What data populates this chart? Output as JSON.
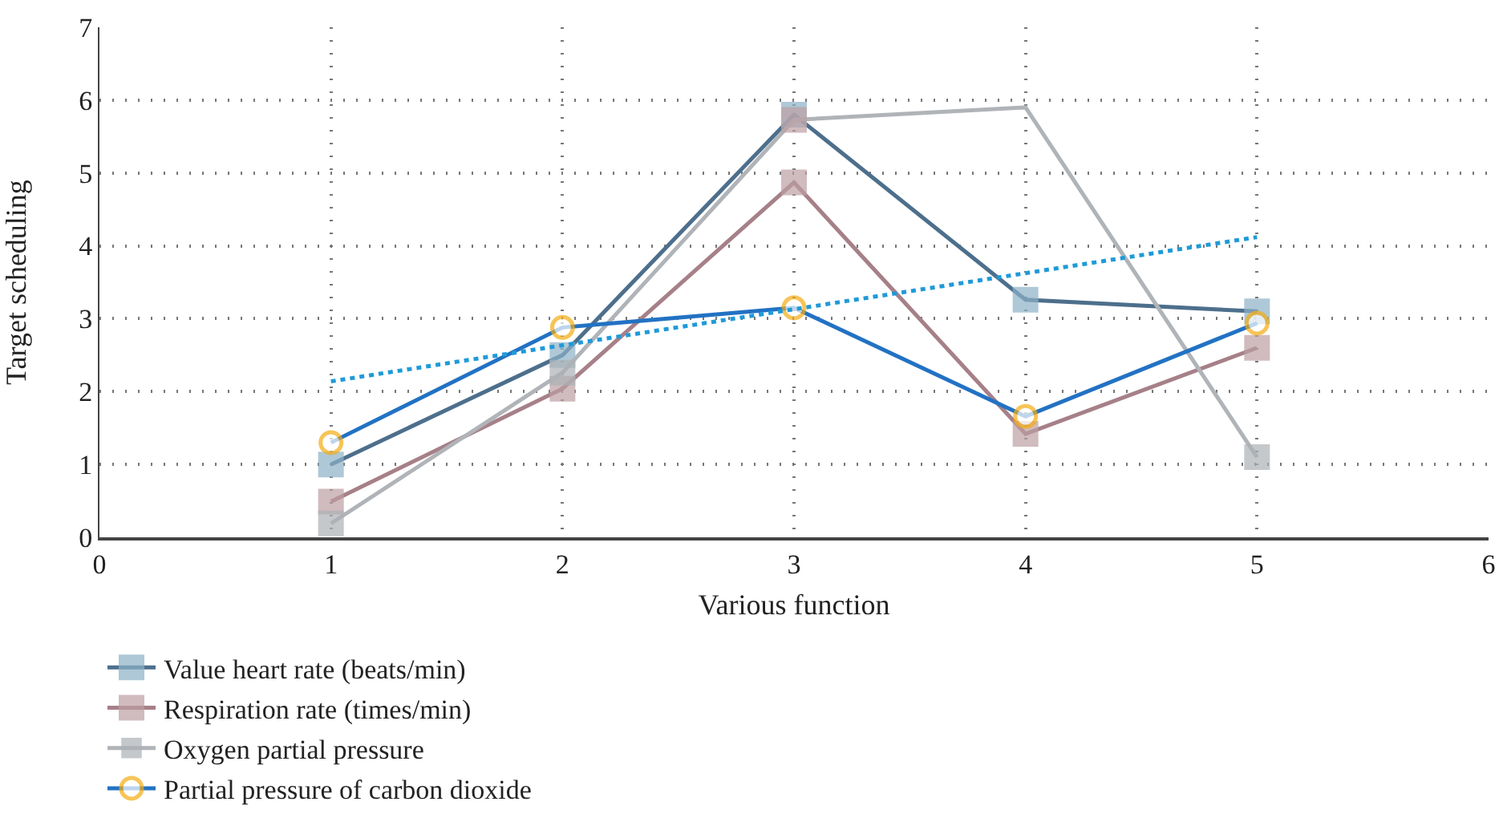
{
  "chart_data": {
    "type": "line",
    "xlabel": "Various function",
    "ylabel": "Target scheduling",
    "x": [
      1,
      2,
      3,
      4,
      5
    ],
    "series": [
      {
        "name": "Value heart rate (beats/min)",
        "color": "#4d6f8c",
        "colors": [
          "#8cb0c6",
          "#8cb0c6",
          "#8cb0c6",
          "#8cb0c6",
          "#8cb0c6"
        ],
        "marker": "square",
        "values": [
          1.0,
          2.5,
          5.8,
          3.26,
          3.1
        ]
      },
      {
        "name": "Respiration rate (times/min)",
        "color": "#a68088",
        "colors": [
          "#bc9ea3",
          "#bc9ea3",
          "#bc9ea3",
          "#bc9ea3",
          "#bc9ea3"
        ],
        "marker": "square",
        "values": [
          0.49,
          2.04,
          4.87,
          1.42,
          2.6
        ]
      },
      {
        "name": "Oxygen partial pressure",
        "color": "#b0b4b8",
        "colors": [
          "#adb1b5",
          "#adb1b5",
          "#bc9ea3",
          null,
          "#adb1b5"
        ],
        "marker": "square",
        "values": [
          0.19,
          2.26,
          5.73,
          5.9,
          1.1
        ]
      },
      {
        "name": "Partial pressure of carbon dioxide",
        "color": "#2272c3",
        "colors": [
          "#f5ac12",
          "#f5ac12",
          "#f5ac12",
          "#f5ac12",
          "#f5ac12"
        ],
        "marker": "circle",
        "values": [
          1.3,
          2.88,
          3.15,
          1.66,
          2.94
        ]
      },
      {
        "type": "line",
        "color": "#1f9ad8",
        "marker": "none",
        "line_style": "dotted",
        "x": [
          1,
          5
        ],
        "values": [
          2.14,
          4.12
        ]
      }
    ],
    "xlim": [
      0,
      6
    ],
    "xticks": [
      0,
      1,
      2,
      3,
      4,
      5,
      6
    ],
    "ylim": [
      0,
      7
    ],
    "yticks": [
      0,
      1,
      2,
      3,
      4,
      5,
      6,
      7
    ],
    "grid": true,
    "legend": "bottom",
    "line_style": "solid"
  }
}
